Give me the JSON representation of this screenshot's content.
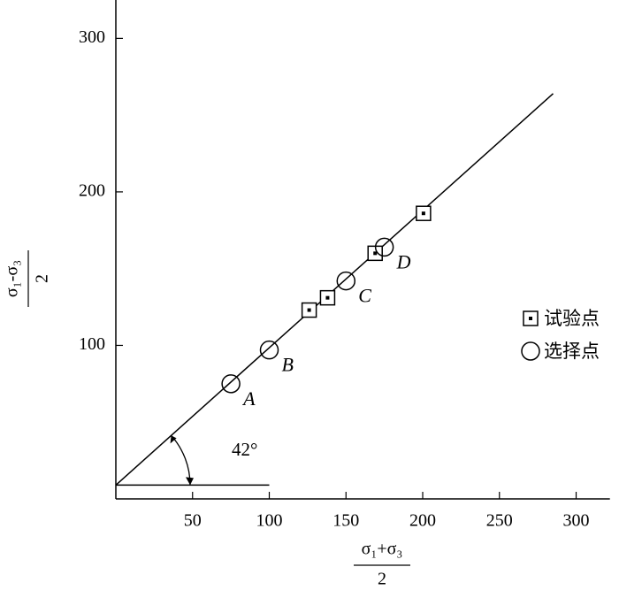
{
  "chart_data": {
    "type": "scatter",
    "x_label": {
      "numerator": "σ₁+σ₃",
      "denominator": "2"
    },
    "y_label": {
      "numerator": "σ₁-σ₃",
      "denominator": "2"
    },
    "xlim": [
      0,
      322
    ],
    "ylim": [
      0,
      325
    ],
    "xticks": [
      50,
      100,
      150,
      200,
      250,
      300
    ],
    "yticks": [
      100,
      200,
      300
    ],
    "series": [
      {
        "name": "试验点",
        "marker": "square",
        "x": [
          126,
          138,
          169,
          200.5
        ],
        "y": [
          123,
          131,
          160,
          186
        ]
      },
      {
        "name": "选择点",
        "marker": "circle",
        "x": [
          75,
          100,
          150,
          175
        ],
        "y": [
          75,
          97,
          142,
          164
        ],
        "labels": [
          "A",
          "B",
          "C",
          "D"
        ]
      }
    ],
    "fit_line": {
      "x": [
        0,
        285
      ],
      "y": [
        9,
        264
      ]
    },
    "reference_line": {
      "x": [
        0,
        100
      ],
      "y": [
        9,
        9
      ]
    },
    "angle_annotation": "42°",
    "legend": "right"
  }
}
